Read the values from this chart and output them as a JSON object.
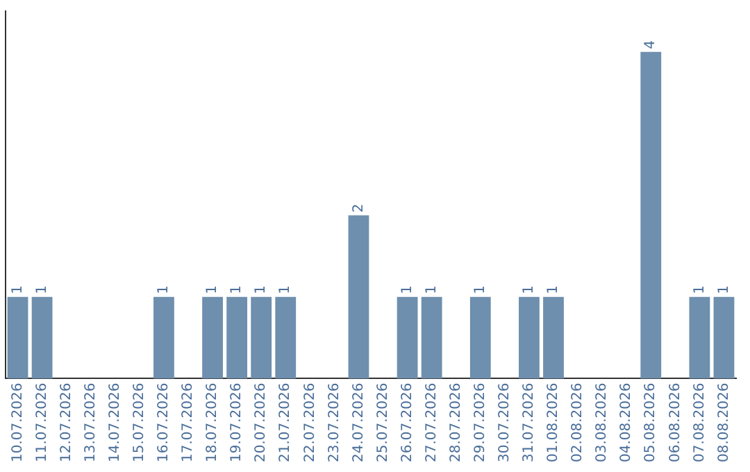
{
  "chart_data": {
    "type": "bar",
    "categories": [
      "10.07.2026",
      "11.07.2026",
      "12.07.2026",
      "13.07.2026",
      "14.07.2026",
      "15.07.2026",
      "16.07.2026",
      "17.07.2026",
      "18.07.2026",
      "19.07.2026",
      "20.07.2026",
      "21.07.2026",
      "22.07.2026",
      "23.07.2026",
      "24.07.2026",
      "25.07.2026",
      "26.07.2026",
      "27.07.2026",
      "28.07.2026",
      "29.07.2026",
      "30.07.2026",
      "31.07.2026",
      "01.08.2026",
      "02.08.2026",
      "03.08.2026",
      "04.08.2026",
      "05.08.2026",
      "06.08.2026",
      "07.08.2026",
      "08.08.2026"
    ],
    "values": [
      1,
      1,
      0,
      0,
      0,
      0,
      1,
      0,
      1,
      1,
      1,
      1,
      0,
      0,
      2,
      0,
      1,
      1,
      0,
      1,
      0,
      1,
      1,
      0,
      0,
      0,
      4,
      0,
      1,
      1
    ],
    "value_labels": [
      "1",
      "1",
      null,
      null,
      null,
      null,
      "1",
      null,
      "1",
      "1",
      "1",
      "1",
      null,
      null,
      "2",
      null,
      "1",
      "1",
      null,
      "1",
      null,
      "1",
      "1",
      null,
      null,
      null,
      "4",
      null,
      "1",
      "1"
    ],
    "color": "#6e8fae",
    "tick_labels": "x",
    "grid": false,
    "legend": false
  }
}
